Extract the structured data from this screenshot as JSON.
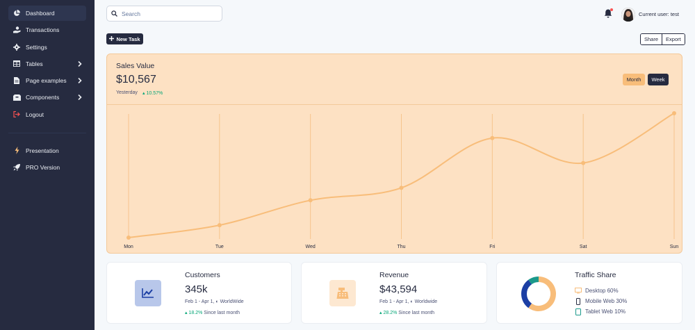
{
  "sidebar": {
    "items": [
      {
        "label": "Dashboard",
        "icon": "pie-chart-icon",
        "active": true
      },
      {
        "label": "Transactions",
        "icon": "hand-coins-icon"
      },
      {
        "label": "Settings",
        "icon": "gear-icon"
      },
      {
        "label": "Tables",
        "icon": "table-icon",
        "has_submenu": true
      },
      {
        "label": "Page examples",
        "icon": "file-icon",
        "has_submenu": true
      },
      {
        "label": "Components",
        "icon": "box-icon",
        "has_submenu": true
      },
      {
        "label": "Logout",
        "icon": "logout-icon"
      }
    ],
    "extra": [
      {
        "label": "Presentation",
        "icon": "bolt-icon"
      },
      {
        "label": "PRO Version",
        "icon": "rocket-icon"
      }
    ]
  },
  "topbar": {
    "search_placeholder": "Search",
    "user_label": "Current user: test",
    "bell_icon": "bell-icon"
  },
  "actions": {
    "new_task": "New Task",
    "share": "Share",
    "export": "Export"
  },
  "sales": {
    "title": "Sales Value",
    "value": "$10,567",
    "period": "Yesterday",
    "change": "10.57%",
    "toggle_month": "Month",
    "toggle_week": "Week"
  },
  "chart_data": {
    "type": "line",
    "title": "",
    "xlabel": "",
    "ylabel": "",
    "categories": [
      "Mon",
      "Tue",
      "Wed",
      "Thu",
      "Fri",
      "Sat",
      "Sun"
    ],
    "series": [
      {
        "values": [
          0,
          10,
          30,
          40,
          80,
          60,
          100
        ]
      }
    ],
    "ylim": [
      0,
      100
    ],
    "grid": "vertical",
    "line_color": "#f8bd7a"
  },
  "stats": {
    "customers": {
      "title": "Customers",
      "value": "345k",
      "range": "Feb 1 - Apr 1,",
      "region": "WorldWide",
      "delta": "18.2%",
      "delta_text": "Since last month",
      "icon": "chart-line-icon"
    },
    "revenue": {
      "title": "Revenue",
      "value": "$43,594",
      "range": "Feb 1 - Apr 1,",
      "region": "Worldwide",
      "delta": "28.2%",
      "delta_text": "Since last month",
      "icon": "cash-register-icon"
    },
    "traffic": {
      "title": "Traffic Share",
      "items": [
        {
          "label": "Desktop",
          "value": "60%",
          "color": "#f8bd7a",
          "icon": "desktop-icon"
        },
        {
          "label": "Mobile Web",
          "value": "30%",
          "color": "#1c3fa4",
          "icon": "mobile-icon"
        },
        {
          "label": "Tablet Web",
          "value": "10%",
          "color": "#1b998b",
          "icon": "tablet-icon"
        }
      ]
    }
  },
  "colors": {
    "sidebar_bg": "#262b40",
    "accent_orange": "#f8bd7a",
    "success": "#05a677",
    "primary_blue": "#1c3fa4"
  }
}
